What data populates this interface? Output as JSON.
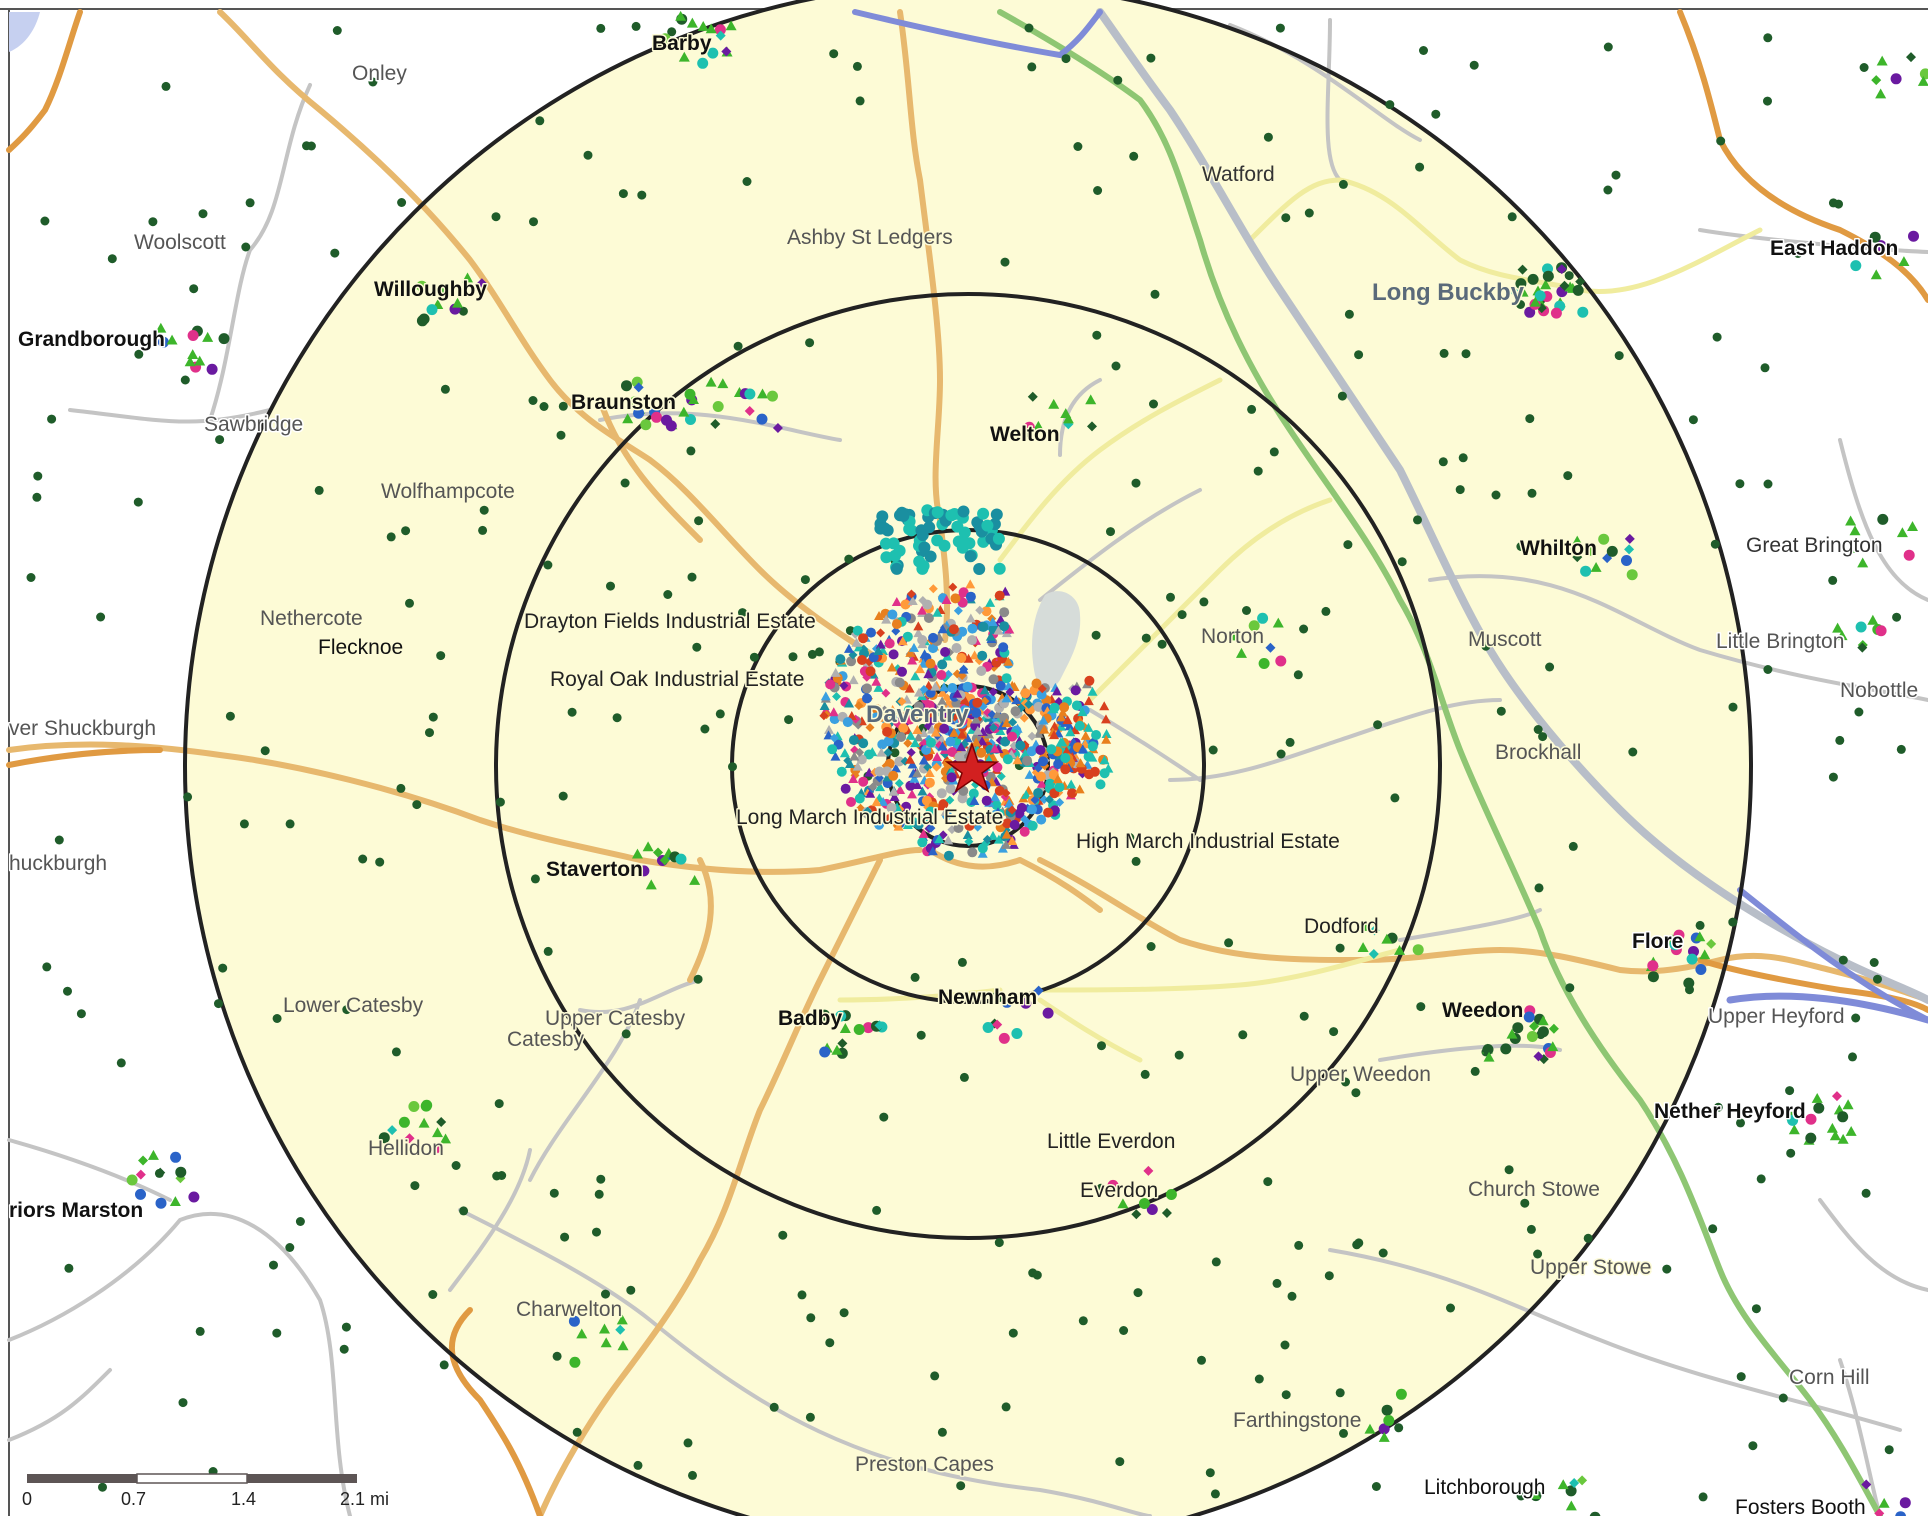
{
  "map": {
    "colors": {
      "background": "#ffffff",
      "catchment_fill": "#fdfbd6",
      "ring_stroke": "#222222",
      "main_road": "#e7b86e",
      "a_road": "#e09a42",
      "minor_road": "#bbbbbb",
      "motorway": "#b8bec8",
      "railway": "#8ec673",
      "canal": "#7f8bd8",
      "lake": "#d6dcd9",
      "site_marker": "#d22020"
    },
    "labels": {
      "barby": "Barby",
      "onley": "Onley",
      "woolscott": "Woolscott",
      "willoughby": "Willoughby",
      "grandborough": "Grandborough",
      "sawbridge": "Sawbridge",
      "braunston": "Braunston",
      "wolfhampcote": "Wolfhampcote",
      "nethercote": "Nethercote",
      "flecknoe": "Flecknoe",
      "lower_shuckburgh": "ver Shuckburgh",
      "upper_shuckburgh": "huckburgh",
      "ashby_st_ledgers": "Ashby St Ledgers",
      "watford": "Watford",
      "long_buckby": "Long Buckby",
      "east_haddon": "East Haddon",
      "welton": "Welton",
      "whilton": "Whilton",
      "great_brington": "Great Brington",
      "little_brington": "Little Brington",
      "nobottle": "Nobottle",
      "norton": "Norton",
      "muscott": "Muscott",
      "brockhall": "Brockhall",
      "drayton_fields": "Drayton Fields Industrial Estate",
      "royal_oak": "Royal Oak Industrial Estate",
      "daventry": "Daventry",
      "long_march": "Long March Industrial Estate",
      "high_march": "High March Industrial Estate",
      "staverton": "Staverton",
      "dodford": "Dodford",
      "flore": "Flore",
      "upper_heyford": "Upper Heyford",
      "weedon": "Weedon",
      "lower_catesby": "Lower Catesby",
      "upper_catesby": "Upper Catesby",
      "catesby": "Catesby",
      "badby": "Badby",
      "newnham": "Newnham",
      "upper_weedon": "Upper Weedon",
      "nether_heyford": "Nether Heyford",
      "hellidon": "Hellidon",
      "little_everdon": "Little Everdon",
      "everdon": "Everdon",
      "church_stowe": "Church Stowe",
      "priors_marston": "riors Marston",
      "upper_stowe": "Upper Stowe",
      "charwelton": "Charwelton",
      "corn_hill": "Corn Hill",
      "farthingstone": "Farthingstone",
      "preston_capes": "Preston Capes",
      "litchborough": "Litchborough",
      "fosters_booth": "Fosters Booth"
    },
    "scale_bar": {
      "ticks": [
        "0",
        "0.7",
        "1.4",
        "2.1 mi"
      ]
    }
  }
}
